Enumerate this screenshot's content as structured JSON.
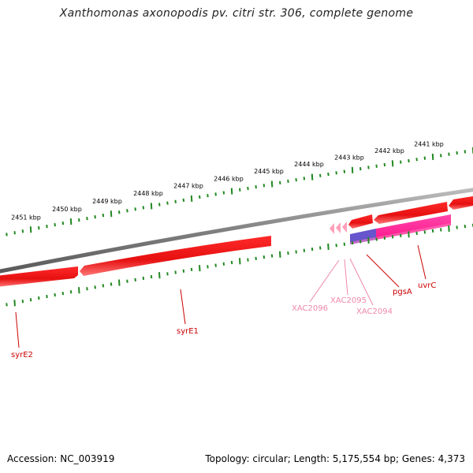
{
  "title": "Xanthomonas axonopodis pv. citri str. 306, complete genome",
  "footer": {
    "accession": "Accession: NC_003919",
    "summary": "Topology: circular; Length: 5,175,554 bp; Genes: 4,373"
  },
  "ruler": {
    "labels": [
      {
        "text": "2451 kbp",
        "kbp": 2451
      },
      {
        "text": "2450 kbp",
        "kbp": 2450
      },
      {
        "text": "2449 kbp",
        "kbp": 2449
      },
      {
        "text": "2448 kbp",
        "kbp": 2448
      },
      {
        "text": "2447 kbp",
        "kbp": 2447
      },
      {
        "text": "2446 kbp",
        "kbp": 2446
      },
      {
        "text": "2445 kbp",
        "kbp": 2445
      },
      {
        "text": "2444 kbp",
        "kbp": 2444
      },
      {
        "text": "2443 kbp",
        "kbp": 2443
      },
      {
        "text": "2442 kbp",
        "kbp": 2442
      },
      {
        "text": "2441 kbp",
        "kbp": 2441
      }
    ]
  },
  "colors": {
    "gene_forward": "#ee1111",
    "gene_light": "#ff6666",
    "trna": "#ffa0b8",
    "uvrC": "#ff2299",
    "overlap": "#6655cc",
    "backbone": "#808080",
    "tick": "#228822",
    "label_dark": "#cc0000",
    "label_light": "#ee88aa"
  },
  "genes": [
    {
      "name": "syrE2",
      "color": "#cc0000"
    },
    {
      "name": "syrE1",
      "color": "#cc0000"
    },
    {
      "name": "XAC2096",
      "color": "#ee88aa"
    },
    {
      "name": "XAC2095",
      "color": "#ee88aa"
    },
    {
      "name": "XAC2094",
      "color": "#ee88aa"
    },
    {
      "name": "pgsA",
      "color": "#cc0000"
    },
    {
      "name": "uvrC",
      "color": "#cc0000"
    }
  ]
}
